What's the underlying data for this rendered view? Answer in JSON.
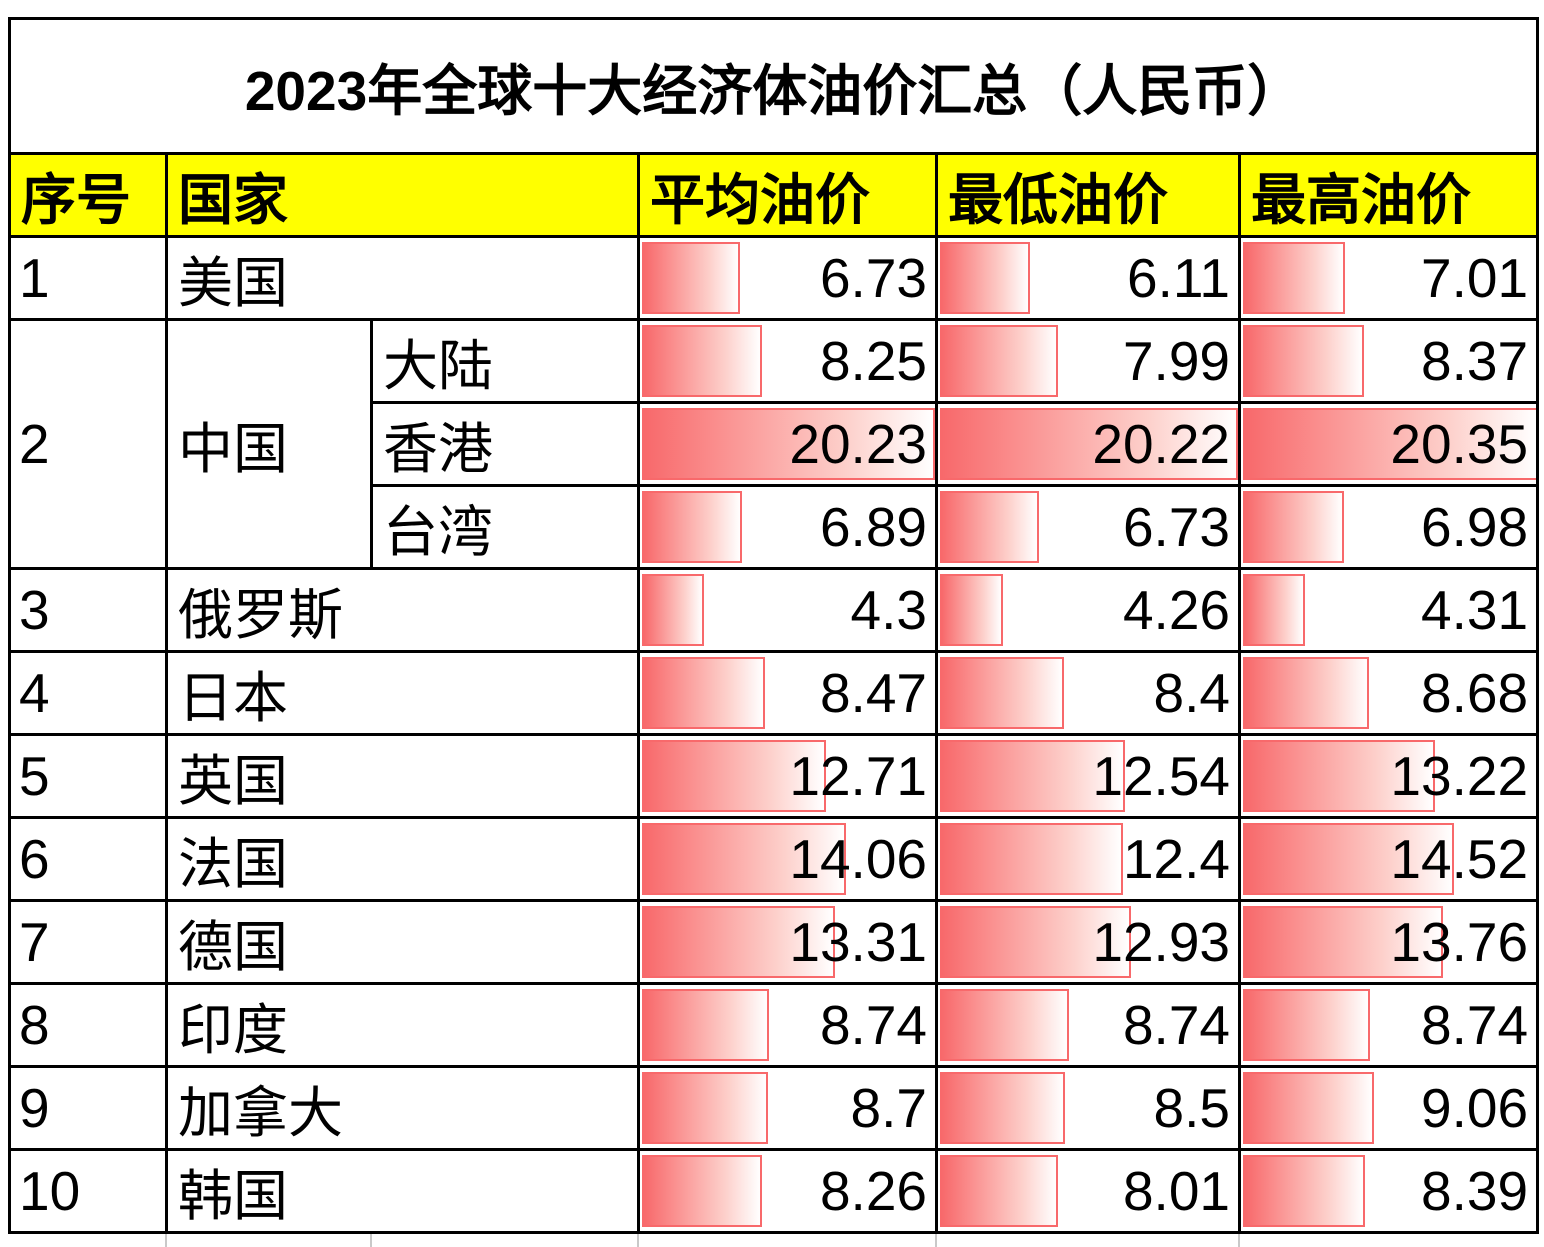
{
  "title": "2023年全球十大经济体油价汇总（人民币）",
  "header": {
    "index": "序号",
    "country": "国家",
    "avg": "平均油价",
    "min": "最低油价",
    "max": "最高油价"
  },
  "header_bg": "#ffff00",
  "bar": {
    "scale_max": 20.35,
    "fill": "#f8696b",
    "border": "#f8696b"
  },
  "rows": [
    {
      "idx": "1",
      "country": "美国",
      "avg": "6.73",
      "min": "6.11",
      "max": "7.01"
    },
    {
      "idx": "2",
      "country": "中国",
      "region": "大陆",
      "avg": "8.25",
      "min": "7.99",
      "max": "8.37"
    },
    {
      "region": "香港",
      "avg": "20.23",
      "min": "20.22",
      "max": "20.35"
    },
    {
      "region": "台湾",
      "avg": "6.89",
      "min": "6.73",
      "max": "6.98"
    },
    {
      "idx": "3",
      "country": "俄罗斯",
      "avg": "4.3",
      "min": "4.26",
      "max": "4.31"
    },
    {
      "idx": "4",
      "country": "日本",
      "avg": "8.47",
      "min": "8.4",
      "max": "8.68"
    },
    {
      "idx": "5",
      "country": "英国",
      "avg": "12.71",
      "min": "12.54",
      "max": "13.22"
    },
    {
      "idx": "6",
      "country": "法国",
      "avg": "14.06",
      "min": "12.4",
      "max": "14.52"
    },
    {
      "idx": "7",
      "country": "德国",
      "avg": "13.31",
      "min": "12.93",
      "max": "13.76"
    },
    {
      "idx": "8",
      "country": "印度",
      "avg": "8.74",
      "min": "8.74",
      "max": "8.74"
    },
    {
      "idx": "9",
      "country": "加拿大",
      "avg": "8.7",
      "min": "8.5",
      "max": "9.06"
    },
    {
      "idx": "10",
      "country": "韩国",
      "avg": "8.26",
      "min": "8.01",
      "max": "8.39"
    }
  ],
  "chart_data": {
    "type": "table",
    "title": "2023年全球十大经济体油价汇总（人民币）",
    "columns": [
      "序号",
      "国家",
      "平均油价",
      "最低油价",
      "最高油价"
    ],
    "rows": [
      [
        "1",
        "美国",
        6.73,
        6.11,
        7.01
      ],
      [
        "2",
        "中国·大陆",
        8.25,
        7.99,
        8.37
      ],
      [
        "2",
        "中国·香港",
        20.23,
        20.22,
        20.35
      ],
      [
        "2",
        "中国·台湾",
        6.89,
        6.73,
        6.98
      ],
      [
        "3",
        "俄罗斯",
        4.3,
        4.26,
        4.31
      ],
      [
        "4",
        "日本",
        8.47,
        8.4,
        8.68
      ],
      [
        "5",
        "英国",
        12.71,
        12.54,
        13.22
      ],
      [
        "6",
        "法国",
        14.06,
        12.4,
        14.52
      ],
      [
        "7",
        "德国",
        13.31,
        12.93,
        13.76
      ],
      [
        "8",
        "印度",
        8.74,
        8.74,
        8.74
      ],
      [
        "9",
        "加拿大",
        8.7,
        8.5,
        9.06
      ],
      [
        "10",
        "韩国",
        8.26,
        8.01,
        8.39
      ]
    ],
    "data_bars": {
      "applies_to": [
        "平均油价",
        "最低油价",
        "最高油价"
      ],
      "scale_max": 20.35,
      "style": "red-gradient-with-border"
    }
  }
}
